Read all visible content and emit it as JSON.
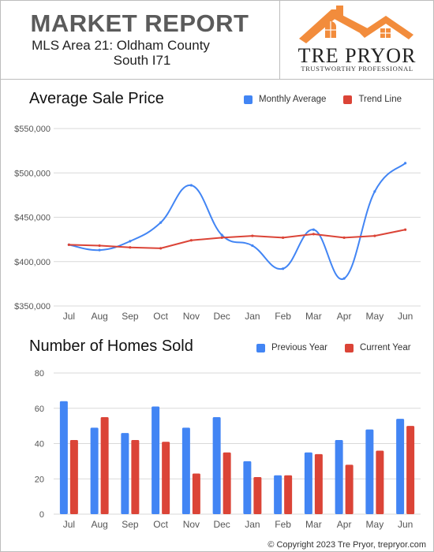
{
  "header": {
    "title": "MARKET REPORT",
    "area_line1": "MLS Area 21: Oldham County",
    "area_line2": "South I71",
    "brand_name": "TRE PRYOR",
    "brand_tagline": "TRUSTWORTHY PROFESSIONAL",
    "logo_icon": "house-roof-logo-icon",
    "logo_color": "#f28c3c"
  },
  "footer": {
    "copyright": "© Copyright 2023 Tre Pryor, trepryor.com"
  },
  "chart_data": [
    {
      "type": "line",
      "title": "Average Sale Price",
      "categories": [
        "Jul",
        "Aug",
        "Sep",
        "Oct",
        "Nov",
        "Dec",
        "Jan",
        "Feb",
        "Mar",
        "Apr",
        "May",
        "Jun"
      ],
      "series": [
        {
          "name": "Monthly Average",
          "color": "#4285f4",
          "smooth": true,
          "values": [
            419000,
            413000,
            423000,
            444000,
            486000,
            430000,
            418000,
            392000,
            436000,
            381000,
            479000,
            511000
          ]
        },
        {
          "name": "Trend Line",
          "color": "#db4437",
          "smooth": false,
          "values": [
            419000,
            418000,
            416000,
            415000,
            424000,
            427000,
            429000,
            427000,
            431000,
            427000,
            429000,
            436000
          ]
        }
      ],
      "yticks": [
        350000,
        400000,
        450000,
        500000,
        550000
      ],
      "ytick_labels": [
        "$350,000",
        "$400,000",
        "$450,000",
        "$500,000",
        "$550,000"
      ],
      "ylim": [
        350000,
        550000
      ],
      "grid": true,
      "legend": "top-right"
    },
    {
      "type": "bar",
      "title": "Number of Homes Sold",
      "categories": [
        "Jul",
        "Aug",
        "Sep",
        "Oct",
        "Nov",
        "Dec",
        "Jan",
        "Feb",
        "Mar",
        "Apr",
        "May",
        "Jun"
      ],
      "series": [
        {
          "name": "Previous Year",
          "color": "#4285f4",
          "values": [
            64,
            49,
            46,
            61,
            49,
            55,
            30,
            22,
            35,
            42,
            48,
            54
          ]
        },
        {
          "name": "Current Year",
          "color": "#db4437",
          "values": [
            42,
            55,
            42,
            41,
            23,
            35,
            21,
            22,
            34,
            28,
            36,
            50
          ]
        }
      ],
      "yticks": [
        0,
        20,
        40,
        60,
        80
      ],
      "ytick_labels": [
        "0",
        "20",
        "40",
        "60",
        "80"
      ],
      "ylim": [
        0,
        80
      ],
      "grid": true,
      "legend": "top-right"
    }
  ]
}
